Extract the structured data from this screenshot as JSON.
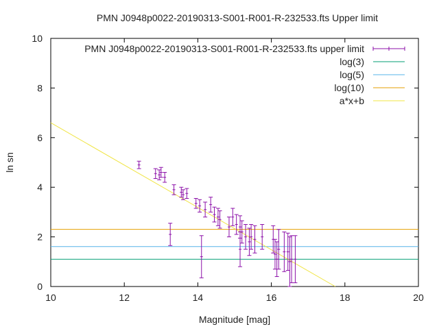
{
  "chart_data": {
    "type": "scatter",
    "title": "PMN J0948p0022-20190313-S001-R001-R-232533.fts Upper limit",
    "xlabel": "Magnitude [mag]",
    "ylabel": "ln sn",
    "xlim": [
      10,
      20
    ],
    "ylim": [
      0,
      10
    ],
    "xticks": [
      "10",
      "12",
      "14",
      "16",
      "18",
      "20"
    ],
    "yticks": [
      "0",
      "2",
      "4",
      "6",
      "8",
      "10"
    ],
    "grid": false,
    "legend_position": "top-right",
    "series": [
      {
        "name": "PMN J0948p0022-20190313-S001-R001-R-232533.fts upper limit",
        "kind": "errorbar",
        "color": "#8b0fa8",
        "points": [
          {
            "x": 12.4,
            "y": 4.9,
            "err": 0.15
          },
          {
            "x": 12.85,
            "y": 4.55,
            "err": 0.2
          },
          {
            "x": 12.95,
            "y": 4.5,
            "err": 0.2
          },
          {
            "x": 13.0,
            "y": 4.6,
            "err": 0.2
          },
          {
            "x": 13.1,
            "y": 4.4,
            "err": 0.2
          },
          {
            "x": 13.25,
            "y": 2.1,
            "err": 0.45
          },
          {
            "x": 13.35,
            "y": 3.9,
            "err": 0.2
          },
          {
            "x": 13.55,
            "y": 3.8,
            "err": 0.2
          },
          {
            "x": 13.6,
            "y": 3.7,
            "err": 0.2
          },
          {
            "x": 13.7,
            "y": 3.75,
            "err": 0.2
          },
          {
            "x": 13.95,
            "y": 3.35,
            "err": 0.2
          },
          {
            "x": 14.05,
            "y": 3.25,
            "err": 0.25
          },
          {
            "x": 14.1,
            "y": 1.2,
            "err": 0.85
          },
          {
            "x": 14.2,
            "y": 3.1,
            "err": 0.3
          },
          {
            "x": 14.35,
            "y": 3.3,
            "err": 0.3
          },
          {
            "x": 14.45,
            "y": 2.9,
            "err": 0.3
          },
          {
            "x": 14.55,
            "y": 2.8,
            "err": 0.35
          },
          {
            "x": 14.6,
            "y": 2.7,
            "err": 0.35
          },
          {
            "x": 14.85,
            "y": 2.4,
            "err": 0.4
          },
          {
            "x": 14.95,
            "y": 2.8,
            "err": 0.35
          },
          {
            "x": 15.05,
            "y": 2.5,
            "err": 0.4
          },
          {
            "x": 15.15,
            "y": 2.4,
            "err": 0.45
          },
          {
            "x": 15.2,
            "y": 2.2,
            "err": 0.45
          },
          {
            "x": 15.3,
            "y": 2.0,
            "err": 0.5
          },
          {
            "x": 15.4,
            "y": 1.8,
            "err": 0.55
          },
          {
            "x": 15.45,
            "y": 2.0,
            "err": 0.5
          },
          {
            "x": 15.55,
            "y": 1.9,
            "err": 0.55
          },
          {
            "x": 15.15,
            "y": 1.5,
            "err": 0.7
          },
          {
            "x": 15.75,
            "y": 2.0,
            "err": 0.5
          },
          {
            "x": 16.05,
            "y": 1.9,
            "err": 0.55
          },
          {
            "x": 16.1,
            "y": 1.3,
            "err": 0.6
          },
          {
            "x": 16.15,
            "y": 1.1,
            "err": 0.7
          },
          {
            "x": 16.2,
            "y": 1.5,
            "err": 0.8
          },
          {
            "x": 16.35,
            "y": 1.4,
            "err": 0.8
          },
          {
            "x": 16.45,
            "y": 1.4,
            "err": 0.75
          },
          {
            "x": 16.5,
            "y": 1.0,
            "err": 1.0
          },
          {
            "x": 16.55,
            "y": 1.1,
            "err": 0.95
          },
          {
            "x": 16.65,
            "y": 1.1,
            "err": 0.95
          }
        ]
      },
      {
        "name": "log(3)",
        "kind": "hline",
        "color": "#009e73",
        "y": 1.0986
      },
      {
        "name": "log(5)",
        "kind": "hline",
        "color": "#56b4e9",
        "y": 1.6094
      },
      {
        "name": "log(10)",
        "kind": "hline",
        "color": "#e69f00",
        "y": 2.3026
      },
      {
        "name": "a*x+b",
        "kind": "fit",
        "color": "#f0e442",
        "a": -0.853,
        "b": 15.13
      }
    ]
  }
}
